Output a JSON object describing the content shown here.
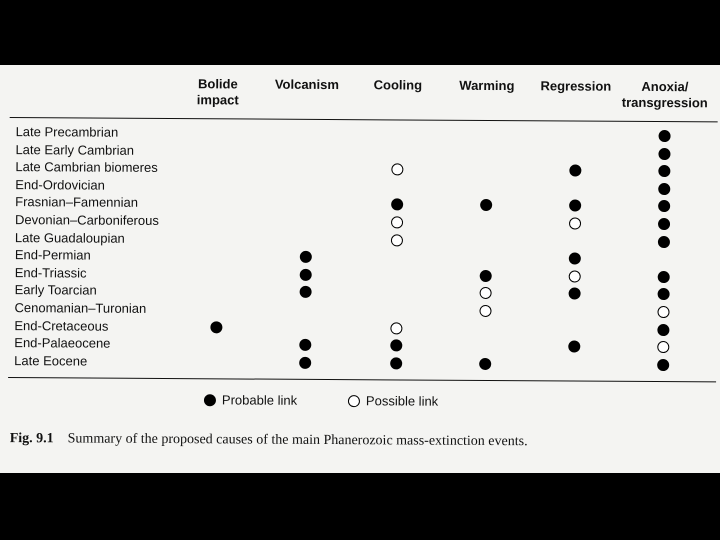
{
  "columns": [
    {
      "id": "bolide",
      "label": "Bolide\nimpact"
    },
    {
      "id": "volcanism",
      "label": "Volcanism"
    },
    {
      "id": "cooling",
      "label": "Cooling"
    },
    {
      "id": "warming",
      "label": "Warming"
    },
    {
      "id": "regression",
      "label": "Regression"
    },
    {
      "id": "anoxia",
      "label": "Anoxia/\ntransgression"
    }
  ],
  "rows": [
    {
      "label": "Late Precambrian",
      "links": {
        "anoxia": "probable"
      }
    },
    {
      "label": "Late Early Cambrian",
      "links": {
        "anoxia": "probable"
      }
    },
    {
      "label": "Late Cambrian biomeres",
      "links": {
        "cooling": "possible",
        "regression": "probable",
        "anoxia": "probable"
      }
    },
    {
      "label": "End-Ordovician",
      "links": {
        "anoxia": "probable"
      }
    },
    {
      "label": "Frasnian–Famennian",
      "links": {
        "cooling": "probable",
        "warming": "probable",
        "regression": "probable",
        "anoxia": "probable"
      }
    },
    {
      "label": "Devonian–Carboniferous",
      "links": {
        "cooling": "possible",
        "regression": "possible",
        "anoxia": "probable"
      }
    },
    {
      "label": "Late Guadaloupian",
      "links": {
        "cooling": "possible",
        "anoxia": "probable"
      }
    },
    {
      "label": "End-Permian",
      "links": {
        "volcanism": "probable",
        "regression": "probable"
      }
    },
    {
      "label": "End-Triassic",
      "links": {
        "volcanism": "probable",
        "warming": "probable",
        "regression": "possible",
        "anoxia": "probable"
      }
    },
    {
      "label": "Early Toarcian",
      "links": {
        "volcanism": "probable",
        "warming": "possible",
        "regression": "probable",
        "anoxia": "probable"
      }
    },
    {
      "label": "Cenomanian–Turonian",
      "links": {
        "warming": "possible",
        "anoxia": "possible"
      }
    },
    {
      "label": "End-Cretaceous",
      "links": {
        "bolide": "probable",
        "cooling": "possible",
        "anoxia": "probable"
      }
    },
    {
      "label": "End-Palaeocene",
      "links": {
        "volcanism": "probable",
        "cooling": "probable",
        "regression": "probable",
        "anoxia": "possible"
      }
    },
    {
      "label": "Late Eocene",
      "links": {
        "volcanism": "probable",
        "cooling": "probable",
        "warming": "probable",
        "anoxia": "probable"
      }
    }
  ],
  "legend": {
    "probable": "Probable link",
    "possible": "Possible link"
  },
  "caption": {
    "figure": "Fig. 9.1",
    "text": "Summary of the proposed causes of the main Phanerozoic mass-extinction events."
  }
}
